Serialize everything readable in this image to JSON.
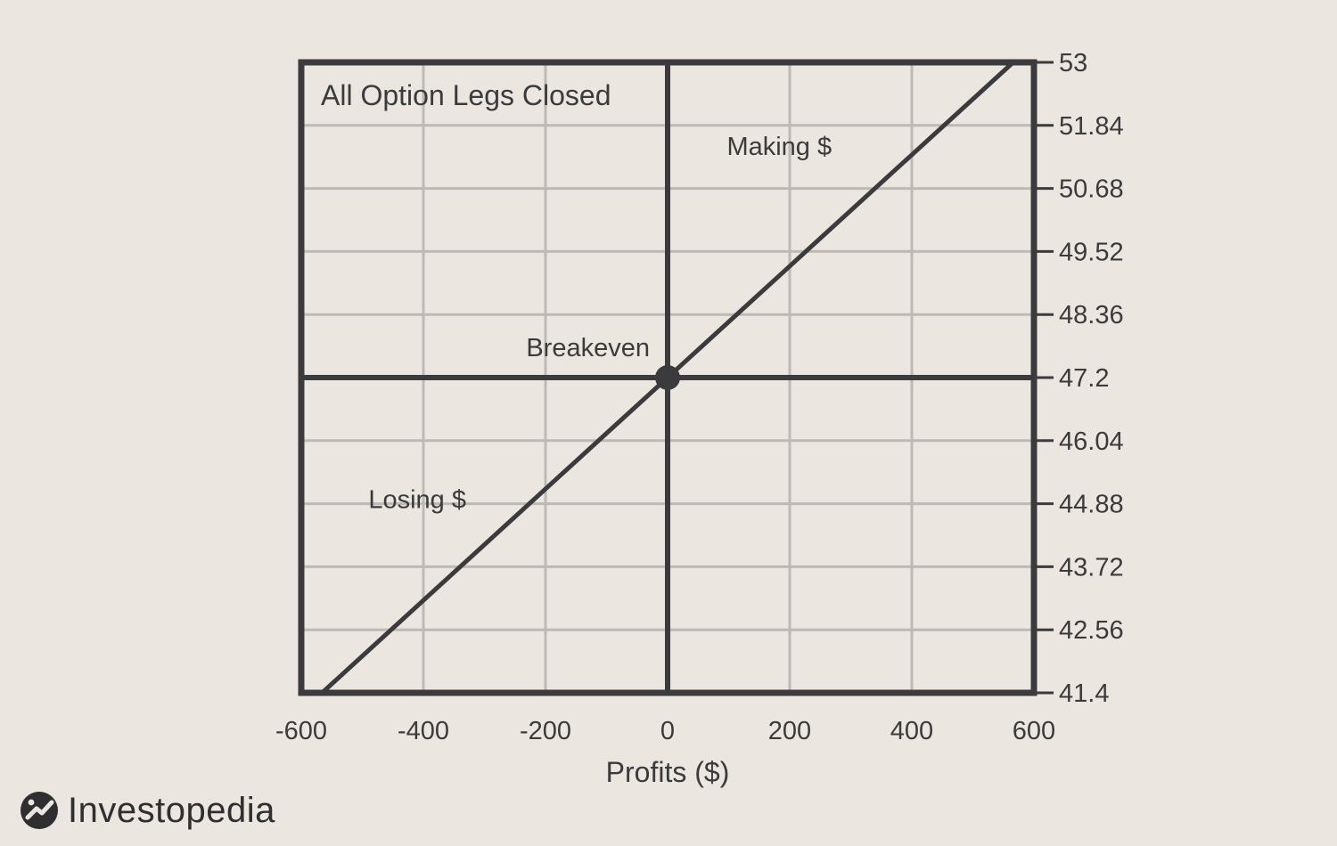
{
  "chart_data": {
    "type": "line",
    "title": "All Option Legs Closed",
    "xlabel": "Profits ($)",
    "ylabel": "",
    "xlim": [
      -600,
      600
    ],
    "ylim": [
      41.4,
      53
    ],
    "x_ticks": [
      -600,
      -400,
      -200,
      0,
      200,
      400,
      600
    ],
    "y_ticks": [
      41.4,
      42.56,
      43.72,
      44.88,
      46.04,
      47.2,
      48.36,
      49.52,
      50.68,
      51.84,
      53
    ],
    "x_tick_labels": [
      "-600",
      "-400",
      "-200",
      "0",
      "200",
      "400",
      "600"
    ],
    "y_tick_labels": [
      "41.4",
      "42.56",
      "43.72",
      "44.88",
      "46.04",
      "47.2",
      "48.36",
      "49.52",
      "50.68",
      "51.84",
      "53"
    ],
    "y_axis_side": "right",
    "grid": true,
    "series": [
      {
        "values": [
          [
            -566,
            41.4
          ],
          [
            0,
            47.2
          ],
          [
            566,
            53
          ]
        ]
      }
    ],
    "reference_lines": {
      "x": 0,
      "y": 47.2
    },
    "breakeven_point": {
      "x": 0,
      "y": 47.2,
      "label": "Breakeven"
    },
    "annotations": [
      {
        "text": "Making $",
        "x": 97,
        "y": 51.3
      },
      {
        "text": "Losing $",
        "x": -490,
        "y": 44.8
      }
    ],
    "colors": {
      "line": "#3b3b3d",
      "grid": "#bdbab6",
      "background": "#ebe6df"
    }
  },
  "brand": {
    "name": "Investopedia",
    "logo_icon": "investopedia-logo-icon"
  }
}
